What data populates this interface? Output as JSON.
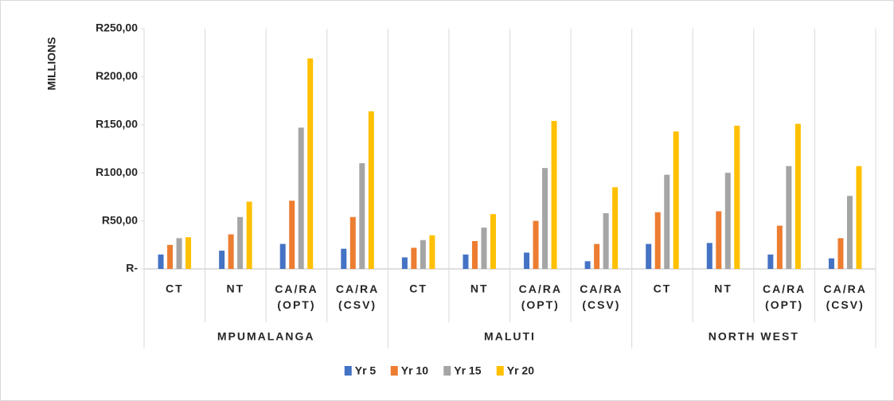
{
  "chart_data": {
    "type": "bar",
    "y_label": "MILLIONS",
    "groups": [
      "MPUMALANGA",
      "MALUTI",
      "NORTH WEST"
    ],
    "categories": [
      "CT",
      "NT",
      "CA/RA (OPT)",
      "CA/RA (CSV)",
      "CT",
      "NT",
      "CA/RA (OPT)",
      "CA/RA (CSV)",
      "CT",
      "NT",
      "CA/RA (OPT)",
      "CA/RA (CSV)"
    ],
    "series": [
      {
        "name": "Yr 5",
        "color": "#4472c4",
        "values": [
          15,
          19,
          26,
          21,
          12,
          15,
          17,
          8,
          26,
          27,
          15,
          11
        ]
      },
      {
        "name": "Yr 10",
        "color": "#ed7d31",
        "values": [
          25,
          36,
          71,
          54,
          22,
          29,
          50,
          26,
          59,
          60,
          45,
          32
        ]
      },
      {
        "name": "Yr 15",
        "color": "#a5a5a5",
        "values": [
          32,
          54,
          147,
          110,
          30,
          43,
          105,
          58,
          98,
          100,
          107,
          76
        ]
      },
      {
        "name": "Yr 20",
        "color": "#ffc000",
        "values": [
          33,
          70,
          219,
          164,
          35,
          57,
          154,
          85,
          143,
          149,
          151,
          107
        ]
      }
    ],
    "ylim": [
      0,
      250
    ],
    "yticks": [
      {
        "value": 0,
        "label": "R-"
      },
      {
        "value": 50,
        "label": "R50,00"
      },
      {
        "value": 100,
        "label": "R100,00"
      },
      {
        "value": 150,
        "label": "R150,00"
      },
      {
        "value": 200,
        "label": "R200,00"
      },
      {
        "value": 250,
        "label": "R250,00"
      }
    ],
    "legend": "bottom"
  }
}
